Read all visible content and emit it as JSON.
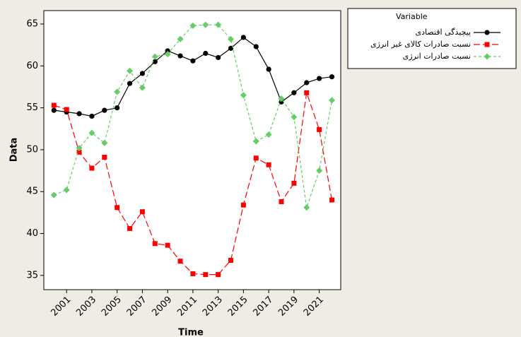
{
  "chart_data": {
    "type": "line",
    "x_label": "Time",
    "y_label": "Data",
    "legend_title": "Variable",
    "x": [
      2000,
      2001,
      2002,
      2003,
      2004,
      2005,
      2006,
      2007,
      2008,
      2009,
      2010,
      2011,
      2012,
      2013,
      2014,
      2015,
      2016,
      2017,
      2018,
      2019,
      2020,
      2021,
      2022
    ],
    "series": [
      {
        "name": "پیچیدگی اقتصادی",
        "color": "#000000",
        "marker": "circle",
        "dash": "none",
        "values": [
          54.7,
          54.5,
          54.3,
          54.0,
          54.7,
          55.0,
          57.9,
          59.1,
          60.5,
          61.8,
          61.2,
          60.6,
          61.5,
          61.0,
          62.1,
          63.4,
          62.3,
          59.6,
          55.7,
          56.8,
          58.0,
          58.5,
          58.7
        ]
      },
      {
        "name": "نسبت صادرات کالای غیر انرژی",
        "color": "#ff0000",
        "marker": "square",
        "dash": "9 4",
        "values": [
          55.3,
          54.8,
          49.7,
          47.8,
          49.1,
          43.1,
          40.6,
          42.6,
          38.8,
          38.6,
          36.7,
          35.2,
          35.1,
          35.1,
          36.8,
          43.4,
          49.0,
          48.2,
          43.8,
          46.0,
          56.8,
          52.4,
          44.0
        ]
      },
      {
        "name": "نسبت صادرات انرژی",
        "color": "#66cc66",
        "marker": "diamond",
        "dash": "4 3",
        "values": [
          44.6,
          45.2,
          50.2,
          52.0,
          50.8,
          56.9,
          59.4,
          57.4,
          61.1,
          61.4,
          63.2,
          64.8,
          64.9,
          64.9,
          63.2,
          56.5,
          51.0,
          51.8,
          56.1,
          53.9,
          43.1,
          47.5,
          55.9
        ]
      }
    ],
    "xlim": [
      1999.2,
      2022.7
    ],
    "xticks": [
      2001,
      2003,
      2005,
      2007,
      2009,
      2011,
      2013,
      2015,
      2017,
      2019,
      2021
    ],
    "ylim": [
      33.3,
      66.6
    ],
    "yticks": [
      35,
      40,
      45,
      50,
      55,
      60,
      65
    ],
    "legend": "outside-right-top"
  }
}
